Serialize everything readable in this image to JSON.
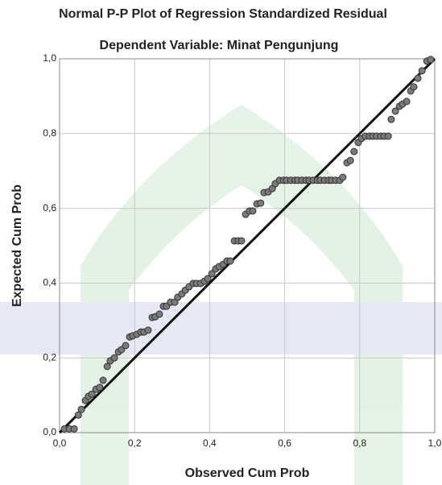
{
  "chart_data": {
    "type": "scatter",
    "title": "Normal P-P Plot of Regression Standardized Residual",
    "subtitle": "Dependent Variable: Minat Pengunjung",
    "x_label": "Observed Cum Prob",
    "y_label": "Expected Cum Prob",
    "color": "#7a7a7a",
    "grid": true,
    "xlim": [
      0,
      1
    ],
    "ylim": [
      0,
      1
    ],
    "xticks": [
      {
        "value": 0,
        "label": "0,0"
      },
      {
        "value": 0.2,
        "label": "0,2"
      },
      {
        "value": 0.4,
        "label": "0,4"
      },
      {
        "value": 0.6,
        "label": "0,6"
      },
      {
        "value": 0.8,
        "label": "0,8"
      },
      {
        "value": 1,
        "label": "1,0"
      }
    ],
    "yticks": [
      {
        "value": 0,
        "label": "0,0"
      },
      {
        "value": 0.2,
        "label": "0,2"
      },
      {
        "value": 0.4,
        "label": "0,4"
      },
      {
        "value": 0.6,
        "label": "0,6"
      },
      {
        "value": 0.8,
        "label": "0,8"
      },
      {
        "value": 1,
        "label": "1,0"
      }
    ],
    "x": [
      0.013,
      0.026,
      0.039,
      0.05,
      0.058,
      0.069,
      0.077,
      0.086,
      0.097,
      0.107,
      0.116,
      0.127,
      0.135,
      0.146,
      0.157,
      0.165,
      0.176,
      0.187,
      0.195,
      0.206,
      0.217,
      0.225,
      0.236,
      0.247,
      0.255,
      0.266,
      0.277,
      0.285,
      0.296,
      0.307,
      0.315,
      0.326,
      0.335,
      0.345,
      0.356,
      0.365,
      0.376,
      0.386,
      0.395,
      0.406,
      0.416,
      0.425,
      0.436,
      0.446,
      0.455,
      0.466,
      0.476,
      0.485,
      0.496,
      0.506,
      0.515,
      0.526,
      0.536,
      0.545,
      0.556,
      0.567,
      0.575,
      0.586,
      0.597,
      0.605,
      0.616,
      0.627,
      0.635,
      0.646,
      0.657,
      0.665,
      0.676,
      0.687,
      0.695,
      0.706,
      0.717,
      0.725,
      0.736,
      0.747,
      0.755,
      0.766,
      0.775,
      0.785,
      0.796,
      0.805,
      0.815,
      0.826,
      0.835,
      0.845,
      0.856,
      0.865,
      0.876,
      0.884,
      0.895,
      0.906,
      0.914,
      0.925,
      0.936,
      0.944,
      0.955,
      0.966,
      0.979,
      0.989
    ],
    "y": [
      0.01,
      0.01,
      0.01,
      0.047,
      0.062,
      0.086,
      0.097,
      0.103,
      0.116,
      0.121,
      0.14,
      0.177,
      0.192,
      0.2,
      0.216,
      0.222,
      0.233,
      0.256,
      0.259,
      0.263,
      0.269,
      0.269,
      0.274,
      0.308,
      0.31,
      0.317,
      0.338,
      0.338,
      0.349,
      0.349,
      0.362,
      0.371,
      0.381,
      0.39,
      0.399,
      0.399,
      0.399,
      0.405,
      0.412,
      0.425,
      0.438,
      0.444,
      0.45,
      0.459,
      0.459,
      0.513,
      0.513,
      0.513,
      0.584,
      0.593,
      0.593,
      0.612,
      0.614,
      0.642,
      0.644,
      0.653,
      0.666,
      0.675,
      0.675,
      0.675,
      0.675,
      0.675,
      0.675,
      0.675,
      0.675,
      0.675,
      0.675,
      0.675,
      0.675,
      0.675,
      0.675,
      0.675,
      0.675,
      0.675,
      0.683,
      0.722,
      0.728,
      0.752,
      0.776,
      0.787,
      0.793,
      0.793,
      0.793,
      0.793,
      0.793,
      0.793,
      0.793,
      0.838,
      0.86,
      0.873,
      0.879,
      0.886,
      0.914,
      0.925,
      0.948,
      0.968,
      0.994,
      0.998
    ]
  }
}
